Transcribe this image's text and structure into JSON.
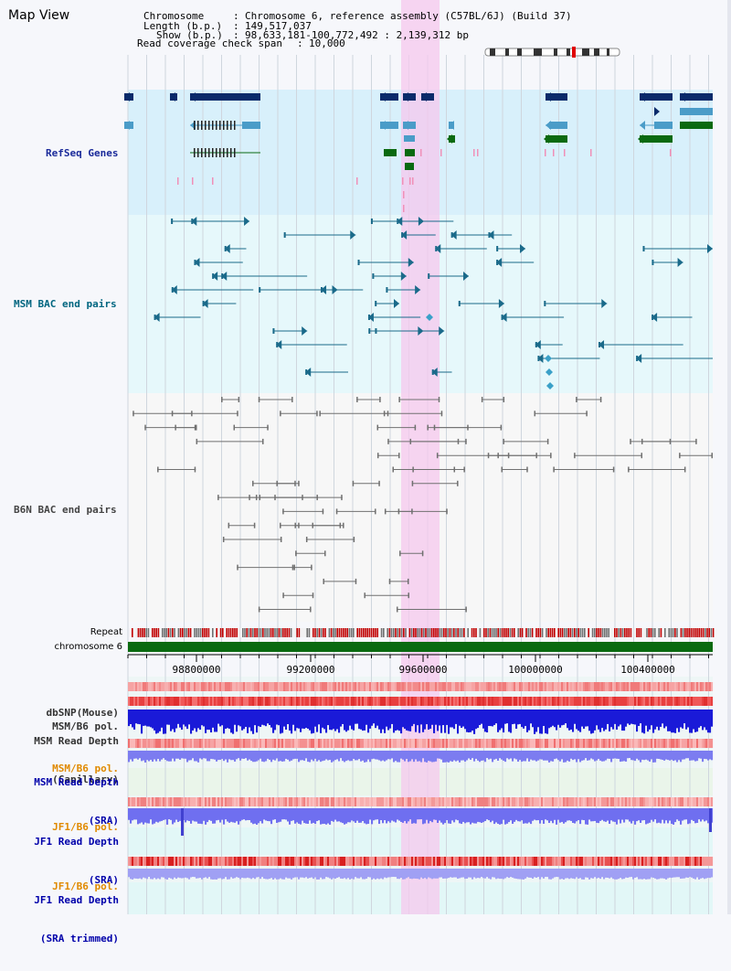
{
  "header": {
    "title": "Map View",
    "chromosome_label": "Chromosome",
    "chromosome_value": "Chromosome 6, reference assembly (C57BL/6J) (Build 37)",
    "length_label": "Length (b.p.)",
    "length_value": "149,517,037",
    "show_label": "Show (b.p.)",
    "show_value": "98,633,181-100,772,492 : 2,139,312 bp",
    "span_label": "Read coverage check span",
    "span_value": "10,000"
  },
  "tracks": {
    "refseq": "RefSeq Genes",
    "msm_bac": "MSM BAC end pairs",
    "b6n_bac": "B6N BAC end pairs",
    "repeat": "Repeat",
    "chromosome": "chromosome 6"
  },
  "axis": {
    "ticks": [
      "98800000",
      "99200000",
      "99600000",
      "100000000",
      "100400000"
    ]
  },
  "lower_tracks": [
    {
      "line1": "dbSNP(Mouse)",
      "line2": "",
      "color": "#333333"
    },
    {
      "line1": "MSM/B6 pol.",
      "line2": "",
      "color": "#333333"
    },
    {
      "line1": "MSM Read Depth",
      "line2": "(Capillary)",
      "color": "#333333"
    },
    {
      "line1": "MSM/B6 pol.",
      "line2": "",
      "color": "#e08a00"
    },
    {
      "line1": "MSM Read Depth",
      "line2": "(SRA)",
      "color": "#0000aa"
    },
    {
      "line1": "JF1/B6 pol.",
      "line2": "",
      "color": "#e08a00"
    },
    {
      "line1": "JF1 Read Depth",
      "line2": "(SRA)",
      "color": "#0000aa"
    },
    {
      "line1": "JF1/B6 pol.",
      "line2": "",
      "color": "#e08a00"
    },
    {
      "line1": "JF1 Read Depth",
      "line2": "(SRA trimmed)",
      "color": "#0000aa"
    }
  ],
  "colors": {
    "refseq_bg": "#d8f0fb",
    "msm_bg": "#e6f8fb",
    "highlight": "#f6c8ee",
    "gene_navy": "#0a2a6a",
    "gene_blue": "#4a9cc8",
    "gene_green": "#0a6a10",
    "msm_pair": "#1a6a8a",
    "b6n_pair": "#707070",
    "chromosome_bar": "#0a6a10",
    "msm_label": "#006680",
    "refseq_label": "#1a2a9a"
  }
}
